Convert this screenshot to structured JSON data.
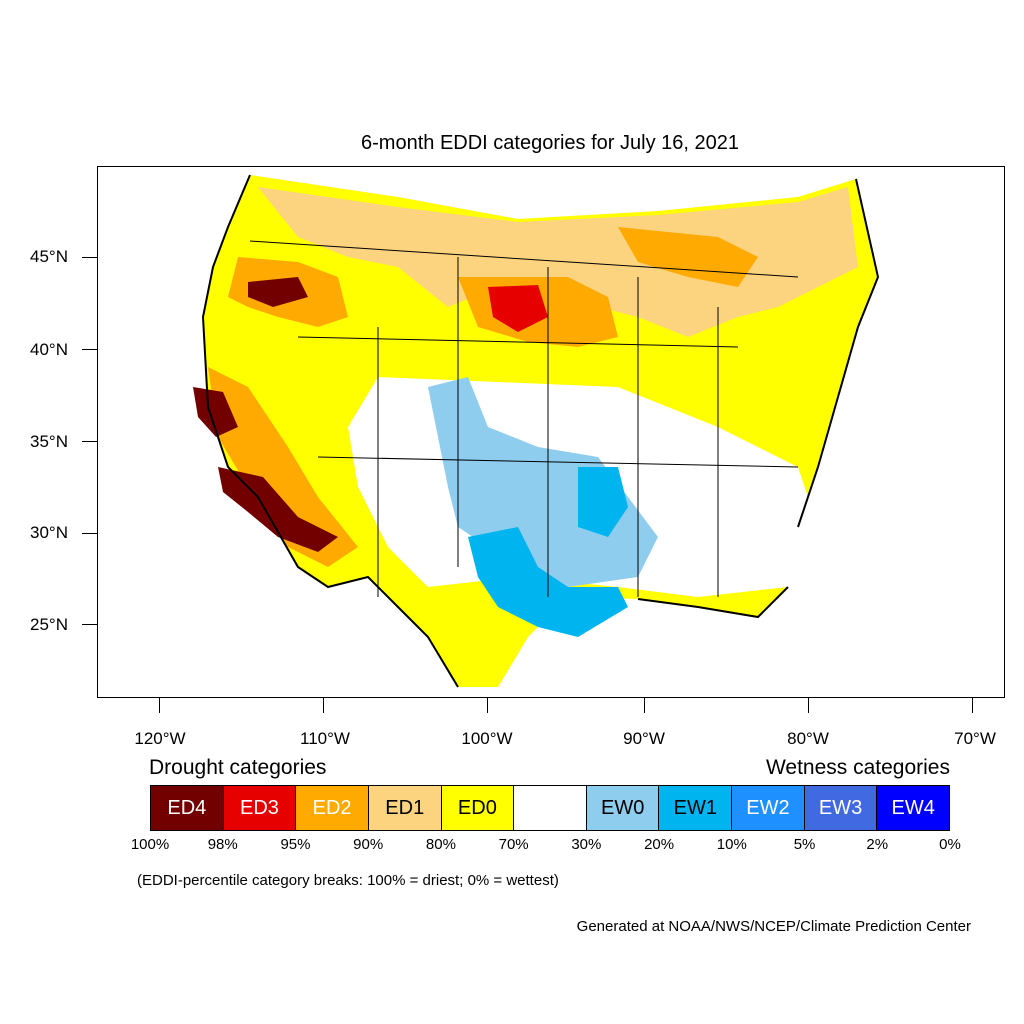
{
  "title": "6-month EDDI categories for July 16, 2021",
  "lat_labels": [
    "45°N",
    "40°N",
    "35°N",
    "30°N",
    "25°N"
  ],
  "lon_labels": [
    "120°W",
    "110°W",
    "100°W",
    "90°W",
    "80°W",
    "70°W"
  ],
  "legend": {
    "drought_heading": "Drought categories",
    "wetness_heading": "Wetness categories",
    "categories": [
      {
        "label": "ED4",
        "color": "#730000",
        "text_color": "#ffffff"
      },
      {
        "label": "ED3",
        "color": "#e60000",
        "text_color": "#ffffff"
      },
      {
        "label": "ED2",
        "color": "#ffaa00",
        "text_color": "#ffffff"
      },
      {
        "label": "ED1",
        "color": "#fcd37f",
        "text_color": "#000000"
      },
      {
        "label": "ED0",
        "color": "#ffff00",
        "text_color": "#000000"
      },
      {
        "label": "",
        "color": "#ffffff",
        "text_color": "#000000"
      },
      {
        "label": "EW0",
        "color": "#8fcdee",
        "text_color": "#000000"
      },
      {
        "label": "EW1",
        "color": "#00b4f0",
        "text_color": "#000000"
      },
      {
        "label": "EW2",
        "color": "#1e90ff",
        "text_color": "#ffffff"
      },
      {
        "label": "EW3",
        "color": "#4169e1",
        "text_color": "#ffffff"
      },
      {
        "label": "EW4",
        "color": "#0000ff",
        "text_color": "#ffffff"
      }
    ],
    "breaks": [
      "100%",
      "98%",
      "95%",
      "90%",
      "80%",
      "70%",
      "30%",
      "20%",
      "10%",
      "5%",
      "2%",
      "0%"
    ]
  },
  "note": "(EDDI-percentile category breaks: 100% = driest; 0% = wettest)",
  "credit": "Generated at NOAA/NWS/NCEP/Climate Prediction Center"
}
